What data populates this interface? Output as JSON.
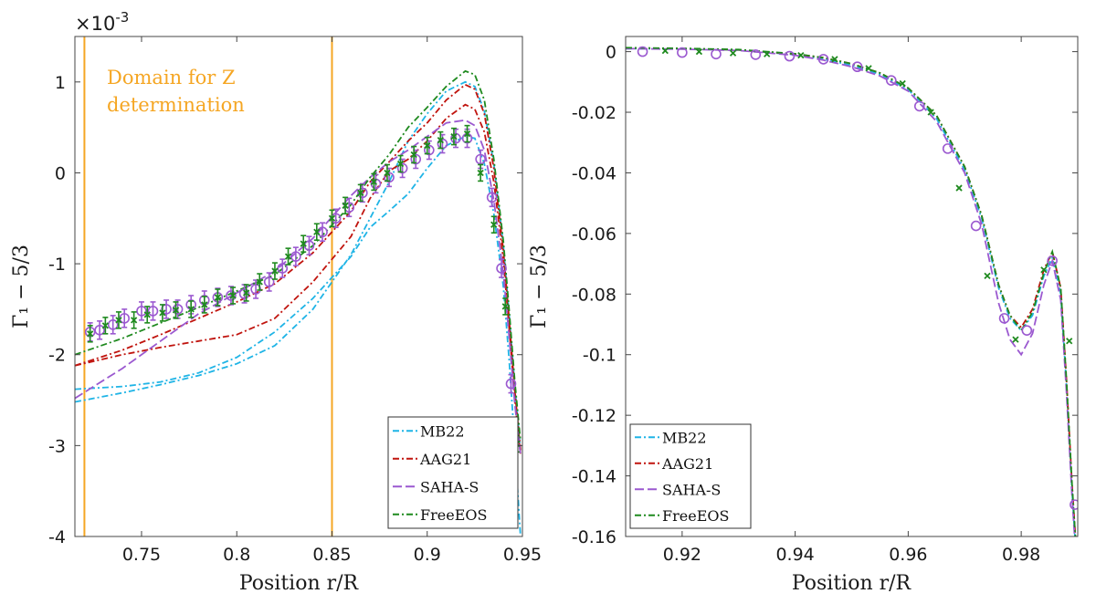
{
  "chart_data": [
    {
      "type": "line",
      "xlabel": "Position r/R",
      "ylabel": "Γ₁ − 5/3",
      "y_multiplier_label": "×10",
      "y_multiplier_exp": "-3",
      "xlim": [
        0.715,
        0.95
      ],
      "ylim": [
        -4,
        1.5
      ],
      "xticks": [
        0.75,
        0.8,
        0.85,
        0.9,
        0.95
      ],
      "xtick_labels": [
        "0.75",
        "0.8",
        "0.85",
        "0.9",
        "0.95"
      ],
      "yticks": [
        -4,
        -3,
        -2,
        -1,
        0,
        1
      ],
      "ytick_labels": [
        "-4",
        "-3",
        "-2",
        "-1",
        "0",
        "1"
      ],
      "legend_position": "bottom-right",
      "annotation": {
        "lines": [
          "Domain for Z",
          "determination"
        ],
        "color": "#f5a623"
      },
      "vlines": [
        {
          "x": 0.72,
          "color": "#f5a623"
        },
        {
          "x": 0.85,
          "color": "#f5a623"
        }
      ],
      "series": [
        {
          "name": "MB22",
          "color": "#1fb4e6",
          "dash": "7 3 2 3",
          "x": [
            0.715,
            0.74,
            0.76,
            0.78,
            0.8,
            0.82,
            0.84,
            0.86,
            0.87,
            0.88,
            0.89,
            0.9,
            0.91,
            0.92,
            0.925,
            0.93,
            0.935,
            0.94,
            0.943,
            0.946,
            0.949
          ],
          "y": [
            -2.38,
            -2.35,
            -2.3,
            -2.2,
            -2.03,
            -1.75,
            -1.38,
            -0.92,
            -0.6,
            -0.42,
            -0.23,
            0.05,
            0.3,
            0.4,
            0.38,
            0.1,
            -0.45,
            -1.25,
            -2.05,
            -3.0,
            -4.0
          ]
        },
        {
          "name": "MB22",
          "color": "#1fb4e6",
          "dash": "7 3 2 3",
          "x": [
            0.715,
            0.74,
            0.76,
            0.78,
            0.8,
            0.82,
            0.84,
            0.86,
            0.87,
            0.88,
            0.89,
            0.9,
            0.91,
            0.92,
            0.925,
            0.93,
            0.935,
            0.94,
            0.943,
            0.946,
            0.949
          ],
          "y": [
            -2.52,
            -2.42,
            -2.33,
            -2.23,
            -2.1,
            -1.9,
            -1.5,
            -0.9,
            -0.5,
            -0.1,
            0.35,
            0.65,
            0.9,
            1.0,
            0.95,
            0.68,
            0.1,
            -0.8,
            -1.55,
            -2.35,
            -3.05
          ]
        },
        {
          "name": "AAG21",
          "color": "#c0140e",
          "dash": "7 3 2 3",
          "x": [
            0.715,
            0.74,
            0.76,
            0.78,
            0.8,
            0.82,
            0.84,
            0.86,
            0.87,
            0.88,
            0.89,
            0.9,
            0.91,
            0.92,
            0.925,
            0.93,
            0.935,
            0.94,
            0.943,
            0.946,
            0.949
          ],
          "y": [
            -2.12,
            -2.0,
            -1.92,
            -1.85,
            -1.78,
            -1.6,
            -1.2,
            -0.7,
            -0.28,
            0.02,
            0.15,
            0.35,
            0.6,
            0.75,
            0.7,
            0.45,
            -0.1,
            -0.95,
            -1.7,
            -2.5,
            -3.1
          ]
        },
        {
          "name": "AAG21",
          "color": "#c0140e",
          "dash": "7 3 2 3",
          "x": [
            0.715,
            0.74,
            0.76,
            0.78,
            0.8,
            0.82,
            0.84,
            0.86,
            0.87,
            0.88,
            0.89,
            0.9,
            0.91,
            0.92,
            0.925,
            0.93,
            0.935,
            0.94,
            0.943,
            0.946,
            0.949
          ],
          "y": [
            -2.12,
            -1.95,
            -1.78,
            -1.6,
            -1.42,
            -1.22,
            -0.88,
            -0.42,
            -0.1,
            0.12,
            0.35,
            0.55,
            0.8,
            0.97,
            0.92,
            0.65,
            0.05,
            -0.85,
            -1.6,
            -2.4,
            -3.05
          ]
        },
        {
          "name": "SAHA-S",
          "color": "#9b59d0",
          "dash": "10 4",
          "x": [
            0.715,
            0.74,
            0.76,
            0.78,
            0.8,
            0.82,
            0.84,
            0.86,
            0.87,
            0.88,
            0.89,
            0.9,
            0.91,
            0.92,
            0.925,
            0.93,
            0.935,
            0.94,
            0.943,
            0.946,
            0.949
          ],
          "y": [
            -2.48,
            -2.15,
            -1.85,
            -1.55,
            -1.32,
            -1.08,
            -0.72,
            -0.25,
            -0.05,
            0.12,
            0.25,
            0.4,
            0.55,
            0.58,
            0.52,
            0.25,
            -0.3,
            -1.1,
            -1.8,
            -2.55,
            -3.1
          ]
        },
        {
          "name": "FreeEOS",
          "color": "#1f8a1f",
          "dash": "7 3 2 3",
          "x": [
            0.715,
            0.74,
            0.76,
            0.78,
            0.8,
            0.82,
            0.84,
            0.86,
            0.87,
            0.88,
            0.89,
            0.9,
            0.91,
            0.92,
            0.925,
            0.93,
            0.935,
            0.94,
            0.943,
            0.946,
            0.949
          ],
          "y": [
            -2.0,
            -1.82,
            -1.65,
            -1.48,
            -1.3,
            -1.12,
            -0.8,
            -0.35,
            -0.05,
            0.2,
            0.5,
            0.72,
            0.95,
            1.12,
            1.08,
            0.8,
            0.15,
            -0.75,
            -1.5,
            -2.3,
            -2.95
          ]
        }
      ],
      "observations": [
        {
          "marker": "circle",
          "color": "#9b59d0",
          "x": [
            0.723,
            0.728,
            0.735,
            0.741,
            0.75,
            0.756,
            0.763,
            0.769,
            0.776,
            0.783,
            0.79,
            0.797,
            0.804,
            0.81,
            0.817,
            0.824,
            0.831,
            0.838,
            0.845,
            0.852,
            0.859,
            0.866,
            0.873,
            0.88,
            0.887,
            0.894,
            0.901,
            0.908,
            0.915,
            0.921,
            0.928,
            0.934,
            0.939,
            0.944
          ],
          "y": [
            -1.75,
            -1.73,
            -1.67,
            -1.6,
            -1.52,
            -1.52,
            -1.5,
            -1.5,
            -1.45,
            -1.4,
            -1.37,
            -1.35,
            -1.33,
            -1.28,
            -1.2,
            -1.05,
            -0.92,
            -0.8,
            -0.65,
            -0.5,
            -0.38,
            -0.22,
            -0.12,
            -0.05,
            0.05,
            0.15,
            0.25,
            0.32,
            0.38,
            0.38,
            0.15,
            -0.27,
            -1.05,
            -2.32
          ],
          "err": 0.1
        },
        {
          "marker": "cross",
          "color": "#1f8a1f",
          "x": [
            0.723,
            0.731,
            0.738,
            0.746,
            0.753,
            0.761,
            0.768,
            0.776,
            0.783,
            0.79,
            0.798,
            0.805,
            0.812,
            0.82,
            0.827,
            0.835,
            0.842,
            0.85,
            0.857,
            0.865,
            0.872,
            0.879,
            0.886,
            0.893,
            0.9,
            0.907,
            0.914,
            0.921,
            0.928,
            0.935,
            0.941,
            0.947
          ],
          "y": [
            -1.77,
            -1.68,
            -1.62,
            -1.62,
            -1.56,
            -1.54,
            -1.51,
            -1.5,
            -1.45,
            -1.37,
            -1.35,
            -1.32,
            -1.2,
            -1.08,
            -0.92,
            -0.78,
            -0.65,
            -0.5,
            -0.36,
            -0.22,
            -0.1,
            0.0,
            0.1,
            0.2,
            0.3,
            0.36,
            0.4,
            0.43,
            0.0,
            -0.57,
            -1.47,
            -2.98
          ],
          "err": 0.09
        }
      ]
    },
    {
      "type": "line",
      "xlabel": "Position r/R",
      "ylabel": "Γ₁ − 5/3",
      "xlim": [
        0.91,
        0.99
      ],
      "ylim": [
        -0.16,
        0.005
      ],
      "xticks": [
        0.92,
        0.94,
        0.96,
        0.98
      ],
      "xtick_labels": [
        "0.92",
        "0.94",
        "0.96",
        "0.98"
      ],
      "yticks": [
        0,
        -0.02,
        -0.04,
        -0.06,
        -0.08,
        -0.1,
        -0.12,
        -0.14,
        -0.16
      ],
      "ytick_labels": [
        "0",
        "-0.02",
        "-0.04",
        "-0.06",
        "-0.08",
        "-0.1",
        "-0.12",
        "-0.14",
        "-0.16"
      ],
      "legend_position": "bottom-left",
      "series": [
        {
          "name": "MB22",
          "color": "#1fb4e6",
          "dash": "7 3 2 3",
          "x": [
            0.91,
            0.92,
            0.93,
            0.94,
            0.945,
            0.95,
            0.955,
            0.96,
            0.965,
            0.97,
            0.973,
            0.976,
            0.978,
            0.98,
            0.982,
            0.984,
            0.9855,
            0.987,
            0.988,
            0.989,
            0.99
          ],
          "y": [
            0.001,
            0.0009,
            0.0005,
            -0.001,
            -0.0025,
            -0.0045,
            -0.0075,
            -0.0125,
            -0.022,
            -0.039,
            -0.055,
            -0.078,
            -0.088,
            -0.092,
            -0.087,
            -0.074,
            -0.068,
            -0.08,
            -0.11,
            -0.145,
            -0.175
          ]
        },
        {
          "name": "AAG21",
          "color": "#c0140e",
          "dash": "7 3 2 3",
          "x": [
            0.91,
            0.92,
            0.93,
            0.94,
            0.945,
            0.95,
            0.955,
            0.96,
            0.965,
            0.97,
            0.973,
            0.976,
            0.978,
            0.98,
            0.982,
            0.984,
            0.9855,
            0.987,
            0.988,
            0.989,
            0.99
          ],
          "y": [
            0.0012,
            0.001,
            0.0006,
            -0.0008,
            -0.002,
            -0.004,
            -0.007,
            -0.012,
            -0.021,
            -0.038,
            -0.054,
            -0.077,
            -0.087,
            -0.091,
            -0.085,
            -0.072,
            -0.066,
            -0.078,
            -0.108,
            -0.143,
            -0.172
          ]
        },
        {
          "name": "SAHA-S",
          "color": "#9b59d0",
          "dash": "10 4",
          "x": [
            0.91,
            0.92,
            0.93,
            0.94,
            0.945,
            0.95,
            0.955,
            0.96,
            0.965,
            0.97,
            0.973,
            0.976,
            0.978,
            0.98,
            0.982,
            0.984,
            0.9855,
            0.987,
            0.988,
            0.989,
            0.99
          ],
          "y": [
            0.001,
            0.0008,
            0.0004,
            -0.0012,
            -0.0028,
            -0.005,
            -0.008,
            -0.013,
            -0.023,
            -0.04,
            -0.057,
            -0.083,
            -0.095,
            -0.1,
            -0.093,
            -0.077,
            -0.069,
            -0.082,
            -0.112,
            -0.147,
            -0.176
          ]
        },
        {
          "name": "FreeEOS",
          "color": "#1f8a1f",
          "dash": "7 3 2 3",
          "x": [
            0.91,
            0.92,
            0.93,
            0.94,
            0.945,
            0.95,
            0.955,
            0.96,
            0.965,
            0.97,
            0.973,
            0.976,
            0.978,
            0.98,
            0.982,
            0.984,
            0.9855,
            0.987,
            0.988,
            0.989,
            0.99
          ],
          "y": [
            0.0013,
            0.0011,
            0.0007,
            -0.0007,
            -0.002,
            -0.004,
            -0.007,
            -0.012,
            -0.021,
            -0.038,
            -0.054,
            -0.077,
            -0.087,
            -0.092,
            -0.086,
            -0.073,
            -0.066,
            -0.078,
            -0.108,
            -0.143,
            -0.172
          ]
        }
      ],
      "observations": [
        {
          "marker": "circle",
          "color": "#9b59d0",
          "x": [
            0.913,
            0.92,
            0.926,
            0.933,
            0.939,
            0.945,
            0.951,
            0.957,
            0.962,
            0.967,
            0.972,
            0.977,
            0.981,
            0.9855,
            0.9895
          ],
          "y": [
            0.0,
            -0.0003,
            -0.0008,
            -0.001,
            -0.0015,
            -0.0025,
            -0.005,
            -0.0095,
            -0.018,
            -0.032,
            -0.0575,
            -0.088,
            -0.092,
            -0.069,
            -0.1495
          ],
          "err": 0.0
        },
        {
          "marker": "cross",
          "color": "#1f8a1f",
          "x": [
            0.917,
            0.923,
            0.929,
            0.935,
            0.941,
            0.947,
            0.953,
            0.959,
            0.964,
            0.969,
            0.974,
            0.979,
            0.984,
            0.9885
          ],
          "y": [
            0.0003,
            0.0,
            -0.0005,
            -0.0008,
            -0.0012,
            -0.0025,
            -0.0055,
            -0.0105,
            -0.02,
            -0.045,
            -0.074,
            -0.095,
            -0.072,
            -0.0955
          ],
          "err": 0.0
        }
      ]
    }
  ]
}
